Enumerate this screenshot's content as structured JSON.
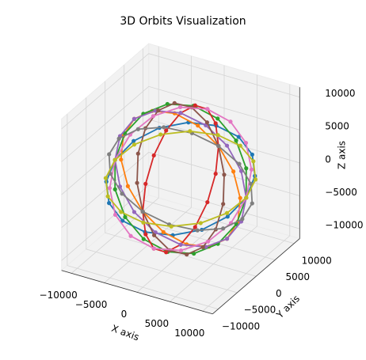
{
  "chart_data": {
    "type": "scatter3d",
    "title": "3D Orbits Visualization",
    "x_label": "X axis",
    "y_label": "Y axis",
    "z_label": "Z axis",
    "xlim": [
      -11500,
      11500
    ],
    "ylim": [
      -11500,
      11500
    ],
    "zlim": [
      -11500,
      11500
    ],
    "xticks": [
      {
        "value": -10000,
        "label": "−10000"
      },
      {
        "value": -5000,
        "label": "−5000"
      },
      0,
      5000,
      10000
    ],
    "yticks": [
      {
        "value": -10000,
        "label": "−10000"
      },
      {
        "value": -5000,
        "label": "−5000"
      },
      0,
      5000,
      10000
    ],
    "zticks": [
      {
        "value": -10000,
        "label": "−10000"
      },
      {
        "value": -5000,
        "label": "−5000"
      },
      0,
      5000,
      10000
    ],
    "grid": true,
    "series": [
      {
        "color": "#1f77b4",
        "x": [
          10000,
          9240,
          7070,
          3830,
          0,
          -3830,
          -7070,
          -9240,
          -10000,
          -9240,
          -7070,
          -3830,
          0,
          3830,
          7070,
          9240
        ],
        "y": [
          0,
          3600,
          6650,
          8690,
          9400,
          8690,
          6650,
          3600,
          0,
          -3600,
          -6650,
          -8690,
          -9400,
          -8690,
          -6650,
          -3600
        ],
        "z": [
          0,
          1300,
          2400,
          3140,
          3400,
          3140,
          2400,
          1300,
          0,
          -1300,
          -2400,
          -3140,
          -3400,
          -3140,
          -2400,
          -1300
        ]
      },
      {
        "color": "#ff7f0e",
        "x": [
          0,
          -2710,
          -5000,
          -6530,
          -7070,
          -6530,
          -5000,
          -2710,
          0,
          2710,
          5000,
          6530,
          7070,
          6530,
          5000,
          2710
        ],
        "y": [
          10000,
          9240,
          7070,
          3830,
          0,
          -3830,
          -7070,
          -9240,
          -10000,
          -9240,
          -7070,
          -3830,
          0,
          3830,
          7070,
          9240
        ],
        "z": [
          0,
          2710,
          5000,
          6530,
          7070,
          6530,
          5000,
          2710,
          0,
          -2710,
          -5000,
          -6530,
          -7070,
          -6530,
          -5000,
          -2710
        ]
      },
      {
        "color": "#2ca02c",
        "x": [
          10000,
          9240,
          7070,
          3830,
          0,
          -3830,
          -7070,
          -9240,
          -10000,
          -9240,
          -7070,
          -3830,
          0,
          3830,
          7070,
          9240
        ],
        "y": [
          0,
          1300,
          2400,
          3140,
          3400,
          3140,
          2400,
          1300,
          0,
          -1300,
          -2400,
          -3140,
          -3400,
          -3140,
          -2400,
          -1300
        ],
        "z": [
          0,
          3600,
          6650,
          8690,
          9400,
          8690,
          6650,
          3600,
          0,
          -3600,
          -6650,
          -8690,
          -9400,
          -8690,
          -6650,
          -3600
        ]
      },
      {
        "color": "#d62728",
        "x": [
          0,
          0,
          0,
          0,
          0,
          0,
          0,
          0,
          0,
          0,
          0,
          0,
          0,
          0,
          0,
          0
        ],
        "y": [
          10000,
          9240,
          7070,
          3830,
          0,
          -3830,
          -7070,
          -9240,
          -10000,
          -9240,
          -7070,
          -3830,
          0,
          3830,
          7070,
          9240
        ],
        "z": [
          0,
          3830,
          7070,
          9240,
          10000,
          9240,
          7070,
          3830,
          0,
          -3830,
          -7070,
          -9240,
          -10000,
          -9240,
          -7070,
          -3830
        ]
      },
      {
        "color": "#9467bd",
        "x": [
          10000,
          9240,
          7070,
          3830,
          0,
          -3830,
          -7070,
          -9240,
          -10000,
          -9240,
          -7070,
          -3830,
          0,
          3830,
          7070,
          9240
        ],
        "y": [
          0,
          0,
          0,
          0,
          0,
          0,
          0,
          0,
          0,
          0,
          0,
          0,
          0,
          0,
          0,
          0
        ],
        "z": [
          0,
          3830,
          7070,
          9240,
          10000,
          9240,
          7070,
          3830,
          0,
          -3830,
          -7070,
          -9240,
          -10000,
          -9240,
          -7070,
          -3830
        ]
      },
      {
        "color": "#8c564b",
        "x": [
          0,
          -1300,
          -2400,
          -3140,
          -3400,
          -3140,
          -2400,
          -1300,
          0,
          1300,
          2400,
          3140,
          3400,
          3140,
          2400,
          1300
        ],
        "y": [
          10000,
          9240,
          7070,
          3830,
          0,
          -3830,
          -7070,
          -9240,
          -10000,
          -9240,
          -7070,
          -3830,
          0,
          3830,
          7070,
          9240
        ],
        "z": [
          0,
          3600,
          6650,
          8690,
          9400,
          8690,
          6650,
          3600,
          0,
          -3600,
          -6650,
          -8690,
          -9400,
          -8690,
          -6650,
          -3600
        ]
      },
      {
        "color": "#e377c2",
        "x": [
          10000,
          9240,
          7070,
          3830,
          0,
          -3830,
          -7070,
          -9240,
          -10000,
          -9240,
          -7070,
          -3830,
          0,
          3830,
          7070,
          9240
        ],
        "y": [
          0,
          2710,
          5000,
          6530,
          7070,
          6530,
          5000,
          2710,
          0,
          -2710,
          -5000,
          -6530,
          -7070,
          -6530,
          -5000,
          -2710
        ],
        "z": [
          0,
          2710,
          5000,
          6530,
          7070,
          6530,
          5000,
          2710,
          0,
          -2710,
          -5000,
          -6530,
          -7070,
          -6530,
          -5000,
          -2710
        ]
      },
      {
        "color": "#7f7f7f",
        "x": [
          0,
          -3600,
          -6650,
          -8690,
          -9400,
          -8690,
          -6650,
          -3600,
          0,
          3600,
          6650,
          8690,
          9400,
          8690,
          6650,
          3600
        ],
        "y": [
          10000,
          9240,
          7070,
          3830,
          0,
          -3830,
          -7070,
          -9240,
          -10000,
          -9240,
          -7070,
          -3830,
          0,
          3830,
          7070,
          9240
        ],
        "z": [
          0,
          1300,
          2400,
          3140,
          3400,
          3140,
          2400,
          1300,
          0,
          -1300,
          -2400,
          -3140,
          -3400,
          -3140,
          -2400,
          -1300
        ]
      },
      {
        "color": "#bcbd22",
        "x": [
          10000,
          9240,
          7070,
          3830,
          0,
          -3830,
          -7070,
          -9240,
          -10000,
          -9240,
          -7070,
          -3830,
          0,
          3830,
          7070,
          9240
        ],
        "y": [
          0,
          3770,
          6960,
          9100,
          9850,
          9100,
          6960,
          3770,
          0,
          -3770,
          -6960,
          -9100,
          -9850,
          -9100,
          -6960,
          -3770
        ],
        "z": [
          0,
          670,
          1230,
          1610,
          1740,
          1610,
          1230,
          670,
          0,
          -670,
          -1230,
          -1610,
          -1740,
          -1610,
          -1230,
          -670
        ]
      }
    ]
  }
}
